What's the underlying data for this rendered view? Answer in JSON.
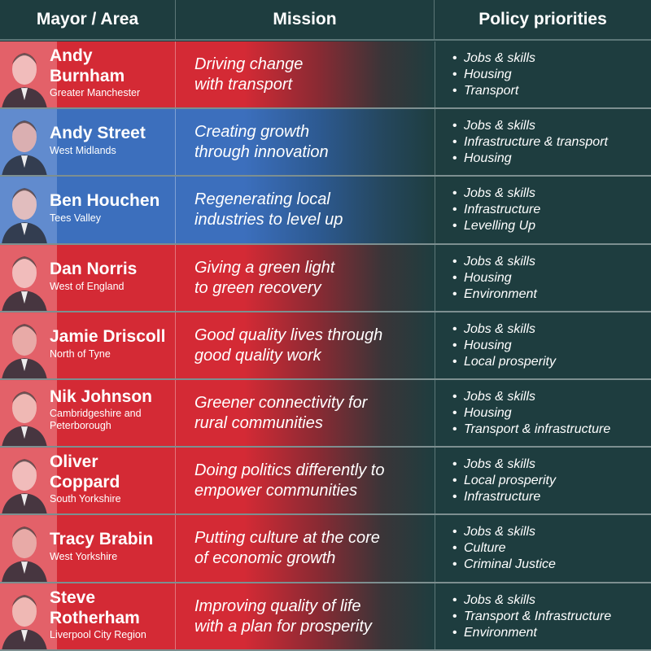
{
  "colors": {
    "red": "#d42a35",
    "blue": "#3c6fbd",
    "dark": "#1e3d3f"
  },
  "header": {
    "col1": "Mayor / Area",
    "col2": "Mission",
    "col3": "Policy priorities"
  },
  "rows": [
    {
      "party": "red",
      "name1": "Andy",
      "name2": "Burnham",
      "area1": "Greater Manchester",
      "area2": "",
      "mission1": "Driving change",
      "mission2": "with transport",
      "p1": "Jobs & skills",
      "p2": "Housing",
      "p3": "Transport"
    },
    {
      "party": "blue",
      "name1": "Andy Street",
      "name2": "",
      "area1": "West Midlands",
      "area2": "",
      "mission1": "Creating growth",
      "mission2": "through innovation",
      "p1": "Jobs & skills",
      "p2": "Infrastructure & transport",
      "p3": "Housing"
    },
    {
      "party": "blue",
      "name1": "Ben Houchen",
      "name2": "",
      "area1": "Tees Valley",
      "area2": "",
      "mission1": "Regenerating local",
      "mission2": "industries to level up",
      "p1": "Jobs & skills",
      "p2": "Infrastructure",
      "p3": "Levelling Up"
    },
    {
      "party": "red",
      "name1": "Dan Norris",
      "name2": "",
      "area1": "West of England",
      "area2": "",
      "mission1": "Giving a green light",
      "mission2": "to green recovery",
      "p1": "Jobs & skills",
      "p2": "Housing",
      "p3": "Environment"
    },
    {
      "party": "red",
      "name1": "Jamie Driscoll",
      "name2": "",
      "area1": "North of Tyne",
      "area2": "",
      "mission1": "Good quality lives through",
      "mission2": "good quality work",
      "p1": "Jobs & skills",
      "p2": "Housing",
      "p3": "Local prosperity"
    },
    {
      "party": "red",
      "name1": "Nik Johnson",
      "name2": "",
      "area1": "Cambridgeshire and",
      "area2": "Peterborough",
      "mission1": "Greener connectivity for",
      "mission2": "rural communities",
      "p1": "Jobs & skills",
      "p2": "Housing",
      "p3": "Transport & infrastructure"
    },
    {
      "party": "red",
      "name1": "Oliver",
      "name2": "Coppard",
      "area1": "South Yorkshire",
      "area2": "",
      "mission1": "Doing politics differently to",
      "mission2": "empower communities",
      "p1": "Jobs & skills",
      "p2": "Local prosperity",
      "p3": "Infrastructure"
    },
    {
      "party": "red",
      "name1": "Tracy Brabin",
      "name2": "",
      "area1": "West Yorkshire",
      "area2": "",
      "mission1": "Putting culture at the core",
      "mission2": "of economic growth",
      "p1": "Jobs & skills",
      "p2": "Culture",
      "p3": "Criminal Justice"
    },
    {
      "party": "red",
      "name1": "Steve",
      "name2": "Rotherham",
      "area1": "Liverpool City Region",
      "area2": "",
      "mission1": "Improving quality of life",
      "mission2": "with a plan for prosperity",
      "p1": "Jobs & skills",
      "p2": "Transport & Infrastructure",
      "p3": "Environment"
    }
  ]
}
